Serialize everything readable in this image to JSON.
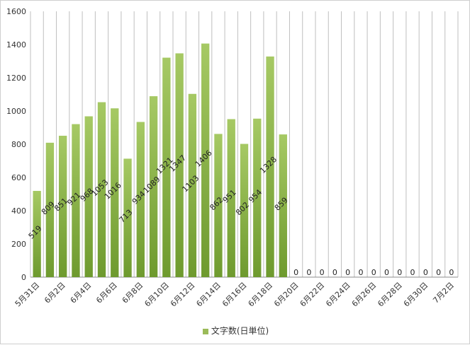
{
  "chart_data": {
    "type": "bar",
    "title": "",
    "xlabel": "",
    "ylabel": "",
    "ylim": [
      0,
      1600
    ],
    "y_ticks": [
      0,
      200,
      400,
      600,
      800,
      1000,
      1200,
      1400,
      1600
    ],
    "grid": "vertical",
    "legend_position": "bottom",
    "categories": [
      "5月31日",
      "6月1日",
      "6月2日",
      "6月3日",
      "6月4日",
      "6月5日",
      "6月6日",
      "6月7日",
      "6月8日",
      "6月9日",
      "6月10日",
      "6月11日",
      "6月12日",
      "6月13日",
      "6月14日",
      "6月15日",
      "6月16日",
      "6月17日",
      "6月18日",
      "6月19日",
      "6月20日",
      "6月21日",
      "6月22日",
      "6月23日",
      "6月24日",
      "6月25日",
      "6月26日",
      "6月27日",
      "6月28日",
      "6月29日",
      "6月30日",
      "7月1日",
      "7月2日"
    ],
    "shown_tick_labels": [
      "5月31日",
      "6月2日",
      "6月4日",
      "6月6日",
      "6月8日",
      "6月10日",
      "6月12日",
      "6月14日",
      "6月16日",
      "6月18日",
      "6月20日",
      "6月22日",
      "6月24日",
      "6月26日",
      "6月28日",
      "6月30日",
      "7月2日"
    ],
    "series": [
      {
        "name": "文字数(日単位)",
        "color": "#9bbb59",
        "values": [
          519,
          809,
          851,
          921,
          968,
          1053,
          1016,
          713,
          934,
          1089,
          1321,
          1347,
          1103,
          1406,
          862,
          951,
          802,
          954,
          1328,
          859,
          0,
          0,
          0,
          0,
          0,
          0,
          0,
          0,
          0,
          0,
          0,
          0,
          0
        ]
      }
    ],
    "data_labels": [
      "519",
      "809",
      "851",
      "921",
      "968",
      "1053",
      "1016",
      "713",
      "934",
      "1089",
      "1321",
      "1347",
      "1103",
      "1406",
      "862",
      "951",
      "802",
      "954",
      "1328",
      "859",
      "0",
      "0",
      "0",
      "0",
      "0",
      "0",
      "0",
      "0",
      "0",
      "0",
      "0",
      "0",
      "0"
    ]
  }
}
